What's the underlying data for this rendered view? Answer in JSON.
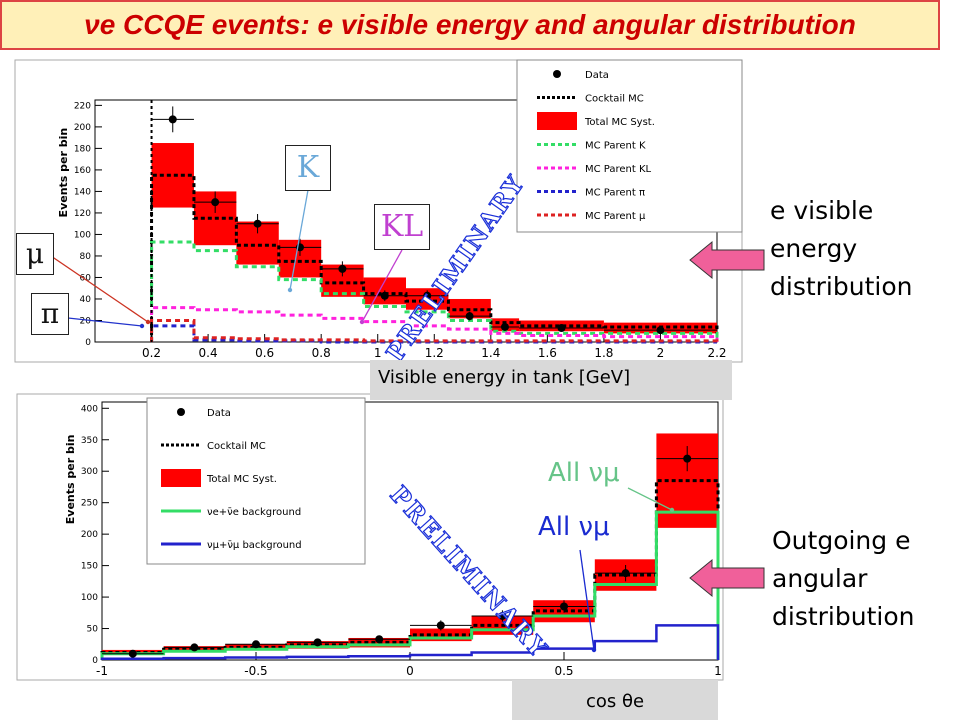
{
  "slide": {
    "title": "νe CCQE events: e visible energy and angular distribution",
    "right_label_1": "e visible energy distribution",
    "right_label_2": "Outgoing e angular distribution",
    "preliminary": "PRELIMINARY",
    "label_K": "K",
    "label_KL": "KL",
    "label_mu": "μ",
    "label_pi": "π",
    "all_numu_1": "All νμ",
    "all_numu_2": "All νμ",
    "xaxis_box_top": "Visible energy in tank [GeV]",
    "xaxis_box_bottom": "cos θe",
    "colors": {
      "title_bg": "#fff0b8",
      "title_text": "#cc0000",
      "arrow": "#f0609a",
      "data_red": "#ff0000",
      "prelim": "#1a2fd8"
    }
  },
  "chart_data": [
    {
      "type": "bar",
      "ylabel": "Events per bin",
      "xlabel": "",
      "xlim": [
        0.0,
        2.2
      ],
      "ylim": [
        0,
        225
      ],
      "xticks": [
        "0.2",
        "0.4",
        "0.6",
        "0.8",
        "1",
        "1.2",
        "1.4",
        "1.6",
        "1.8",
        "2",
        "2.2"
      ],
      "yticks": [
        "0",
        "20",
        "40",
        "60",
        "80",
        "100",
        "120",
        "140",
        "160",
        "180",
        "200",
        "220"
      ],
      "bin_edges": [
        0.2,
        0.35,
        0.5,
        0.65,
        0.8,
        0.95,
        1.1,
        1.25,
        1.4,
        1.5,
        1.8,
        2.2
      ],
      "data": [
        207,
        130,
        110,
        88,
        68,
        43,
        43,
        24,
        14,
        13,
        11
      ],
      "data_err": [
        12,
        10,
        9,
        8,
        7,
        5,
        5,
        4,
        3,
        3,
        3
      ],
      "cocktail_mc": [
        155,
        115,
        90,
        75,
        55,
        45,
        38,
        30,
        18,
        15,
        14
      ],
      "syst_low": [
        125,
        90,
        72,
        60,
        42,
        35,
        30,
        22,
        10,
        10,
        8
      ],
      "syst_high": [
        185,
        140,
        112,
        95,
        72,
        60,
        50,
        40,
        22,
        20,
        18
      ],
      "mc_parent_K": [
        93,
        85,
        70,
        58,
        45,
        33,
        28,
        20,
        10,
        8,
        8
      ],
      "mc_parent_KL": [
        32,
        30,
        28,
        25,
        22,
        19,
        15,
        12,
        8,
        6,
        5
      ],
      "mc_parent_pi": [
        15,
        2,
        1,
        1,
        0,
        0,
        0,
        0,
        0,
        0,
        0
      ],
      "mc_parent_mu": [
        20,
        4,
        3,
        2,
        2,
        1,
        1,
        1,
        1,
        1,
        1
      ],
      "legend": [
        "Data",
        "Cocktail MC",
        "Total MC Syst.",
        "MC Parent K",
        "MC Parent KL",
        "MC Parent π",
        "MC Parent μ"
      ],
      "legend_position": "top-right"
    },
    {
      "type": "bar",
      "ylabel": "Events per bin",
      "xlabel": "",
      "xlim": [
        -1.0,
        1.0
      ],
      "ylim": [
        0,
        410
      ],
      "xticks": [
        "-1",
        "-0.5",
        "0",
        "0.5",
        "1"
      ],
      "yticks": [
        "0",
        "50",
        "100",
        "150",
        "200",
        "250",
        "300",
        "350",
        "400"
      ],
      "bin_edges": [
        -1.0,
        -0.8,
        -0.6,
        -0.4,
        -0.2,
        0.0,
        0.2,
        0.4,
        0.6,
        0.8,
        1.0
      ],
      "data": [
        10,
        20,
        25,
        28,
        33,
        55,
        70,
        85,
        138,
        320
      ],
      "data_err": [
        4,
        5,
        5,
        6,
        6,
        8,
        9,
        10,
        13,
        20
      ],
      "cocktail_mc": [
        12,
        17,
        20,
        24,
        28,
        40,
        55,
        78,
        135,
        285
      ],
      "syst_low": [
        8,
        12,
        15,
        18,
        20,
        30,
        40,
        60,
        110,
        210
      ],
      "syst_high": [
        16,
        22,
        25,
        30,
        35,
        50,
        70,
        95,
        160,
        360
      ],
      "nue_background": [
        10,
        14,
        17,
        21,
        24,
        35,
        48,
        70,
        120,
        235
      ],
      "numu_background": [
        2,
        3,
        4,
        5,
        6,
        8,
        12,
        18,
        30,
        55
      ],
      "legend": [
        "Data",
        "Cocktail MC",
        "Total MC Syst.",
        "νe+ν̄e background",
        "νμ+ν̄μ background"
      ],
      "legend_position": "top-left"
    }
  ]
}
